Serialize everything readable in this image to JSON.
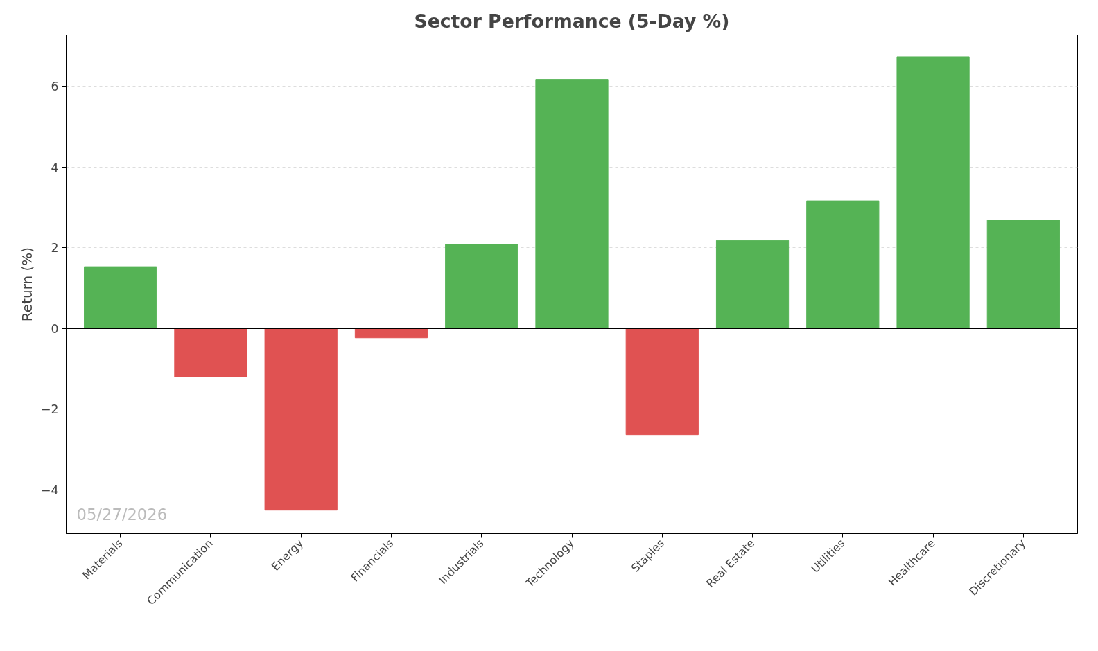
{
  "chart_data": {
    "type": "bar",
    "title": "Sector Performance (5-Day %)",
    "ylabel": "Return (%)",
    "categories": [
      "Materials",
      "Communication",
      "Energy",
      "Financials",
      "Industrials",
      "Technology",
      "Staples",
      "Real Estate",
      "Utilities",
      "Healthcare",
      "Discretionary"
    ],
    "values": [
      1.53,
      -1.2,
      -4.5,
      -0.23,
      2.08,
      6.17,
      -2.63,
      2.18,
      3.16,
      6.73,
      2.69
    ],
    "colors": [
      "#55b355",
      "#e05252",
      "#e05252",
      "#e05252",
      "#55b355",
      "#55b355",
      "#e05252",
      "#55b355",
      "#55b355",
      "#55b355",
      "#55b355"
    ],
    "ylim": [
      -5.08,
      7.27
    ],
    "yticks": [
      {
        "value": -4,
        "label": "−4"
      },
      {
        "value": -2,
        "label": "−2"
      },
      0,
      2,
      4,
      6
    ],
    "grid": "y",
    "ref_lines": [
      {
        "axis": "y",
        "value": 0,
        "color": "#000000"
      }
    ],
    "annotations": [
      "05/27/2026"
    ]
  }
}
